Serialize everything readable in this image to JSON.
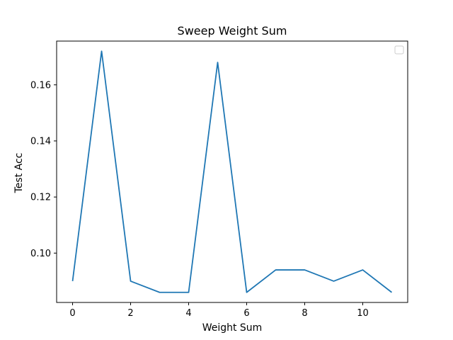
{
  "chart_data": {
    "type": "line",
    "title": "Sweep Weight Sum",
    "xlabel": "Weight Sum",
    "ylabel": "Test Acc",
    "xlim": [
      -0.55,
      11.55
    ],
    "ylim": [
      0.0824,
      0.1756
    ],
    "xticks": [
      0,
      2,
      4,
      6,
      8,
      10
    ],
    "xtick_labels": [
      "0",
      "2",
      "4",
      "6",
      "8",
      "10"
    ],
    "yticks": [
      0.1,
      0.12,
      0.14,
      0.16
    ],
    "ytick_labels": [
      "0.10",
      "0.12",
      "0.14",
      "0.16"
    ],
    "grid": false,
    "legend": {
      "placement": "top-right",
      "entries": []
    },
    "series": [
      {
        "color": "#1f77b4",
        "x": [
          0,
          1,
          2,
          3,
          4,
          5,
          6,
          7,
          8,
          9,
          10,
          11
        ],
        "y": [
          0.09,
          0.172,
          0.09,
          0.086,
          0.086,
          0.168,
          0.086,
          0.094,
          0.094,
          0.09,
          0.094,
          0.086
        ]
      }
    ]
  }
}
